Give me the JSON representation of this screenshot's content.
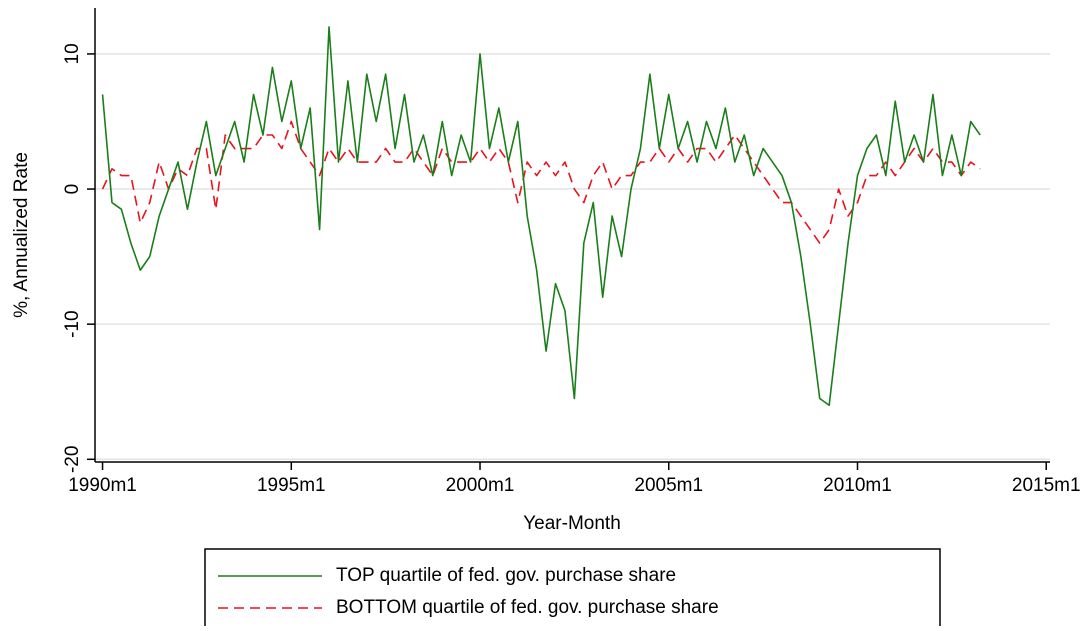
{
  "chart_data": {
    "type": "line",
    "x_label": "Year-Month",
    "y_label": "%, Annualized Rate",
    "x": [
      1990,
      1990.25,
      1990.5,
      1990.75,
      1991,
      1991.25,
      1991.5,
      1991.75,
      1992,
      1992.25,
      1992.5,
      1992.75,
      1993,
      1993.25,
      1993.5,
      1993.75,
      1994,
      1994.25,
      1994.5,
      1994.75,
      1995,
      1995.25,
      1995.5,
      1995.75,
      1996,
      1996.25,
      1996.5,
      1996.75,
      1997,
      1997.25,
      1997.5,
      1997.75,
      1998,
      1998.25,
      1998.5,
      1998.75,
      1999,
      1999.25,
      1999.5,
      1999.75,
      2000,
      2000.25,
      2000.5,
      2000.75,
      2001,
      2001.25,
      2001.5,
      2001.75,
      2002,
      2002.25,
      2002.5,
      2002.75,
      2003,
      2003.25,
      2003.5,
      2003.75,
      2004,
      2004.25,
      2004.5,
      2004.75,
      2005,
      2005.25,
      2005.5,
      2005.75,
      2006,
      2006.25,
      2006.5,
      2006.75,
      2007,
      2007.25,
      2007.5,
      2007.75,
      2008,
      2008.25,
      2008.5,
      2008.75,
      2009,
      2009.25,
      2009.5,
      2009.75,
      2010,
      2010.25,
      2010.5,
      2010.75,
      2011,
      2011.25,
      2011.5,
      2011.75,
      2012,
      2012.25,
      2012.5,
      2012.75,
      2013,
      2013.25
    ],
    "series": [
      {
        "name": "TOP quartile of fed. gov. purchase share",
        "color": "#1a7f1a",
        "line_style": "solid",
        "values": [
          7,
          -1,
          -1.5,
          -4,
          -6,
          -5,
          -2,
          0,
          2,
          -1.5,
          2,
          5,
          1,
          3,
          5,
          2,
          7,
          4,
          9,
          5,
          8,
          3,
          6,
          -3,
          12,
          2,
          8,
          2,
          8.5,
          5,
          8.5,
          3,
          7,
          2,
          4,
          1,
          5,
          1,
          4,
          2,
          10,
          3,
          6,
          2,
          5,
          -2,
          -6,
          -12,
          -7,
          -9,
          -15.5,
          -4,
          -1,
          -8,
          -2,
          -5,
          0,
          3,
          8.5,
          3,
          7,
          3,
          5,
          2,
          5,
          3,
          6,
          2,
          4,
          1,
          3,
          2,
          1,
          -1,
          -5,
          -10,
          -15.5,
          -16,
          -10,
          -4,
          1,
          3,
          4,
          1,
          6.5,
          2,
          4,
          2,
          7,
          1,
          4,
          1,
          5,
          4
        ]
      },
      {
        "name": "BOTTOM quartile of fed. gov. purchase share",
        "color": "#e8141e",
        "line_style": "dashed",
        "values": [
          0,
          1.5,
          1,
          1,
          -2.5,
          -1,
          2,
          0,
          1.5,
          1,
          3,
          3,
          -1.5,
          4,
          3,
          3,
          3,
          4,
          4,
          3,
          5,
          3,
          2,
          1,
          3,
          2,
          3,
          2,
          2,
          2,
          3,
          2,
          2,
          3,
          2,
          1,
          3,
          2,
          2,
          2,
          3,
          2,
          3,
          2,
          -1,
          2,
          1,
          2,
          1,
          2,
          0,
          -1,
          1,
          2,
          0,
          1,
          1,
          2,
          2,
          3,
          2,
          3,
          2,
          3,
          3,
          2,
          3,
          4,
          3,
          2,
          1,
          0,
          -1,
          -1,
          -2,
          -3,
          -4,
          -3,
          0,
          -2,
          -1,
          1,
          1,
          2,
          1,
          2,
          3,
          2,
          3,
          2,
          2,
          1,
          2,
          1.5
        ]
      }
    ],
    "xlim": [
      1989.8,
      2015.1
    ],
    "xticks": [
      {
        "value": 1990,
        "label": "1990m1"
      },
      {
        "value": 1995,
        "label": "1995m1"
      },
      {
        "value": 2000,
        "label": "2000m1"
      },
      {
        "value": 2005,
        "label": "2005m1"
      },
      {
        "value": 2010,
        "label": "2010m1"
      },
      {
        "value": 2015,
        "label": "2015m1"
      }
    ],
    "ylim": [
      -20.2,
      13.4
    ],
    "yticks": [
      -20,
      -10,
      0,
      10
    ],
    "grid": true
  }
}
